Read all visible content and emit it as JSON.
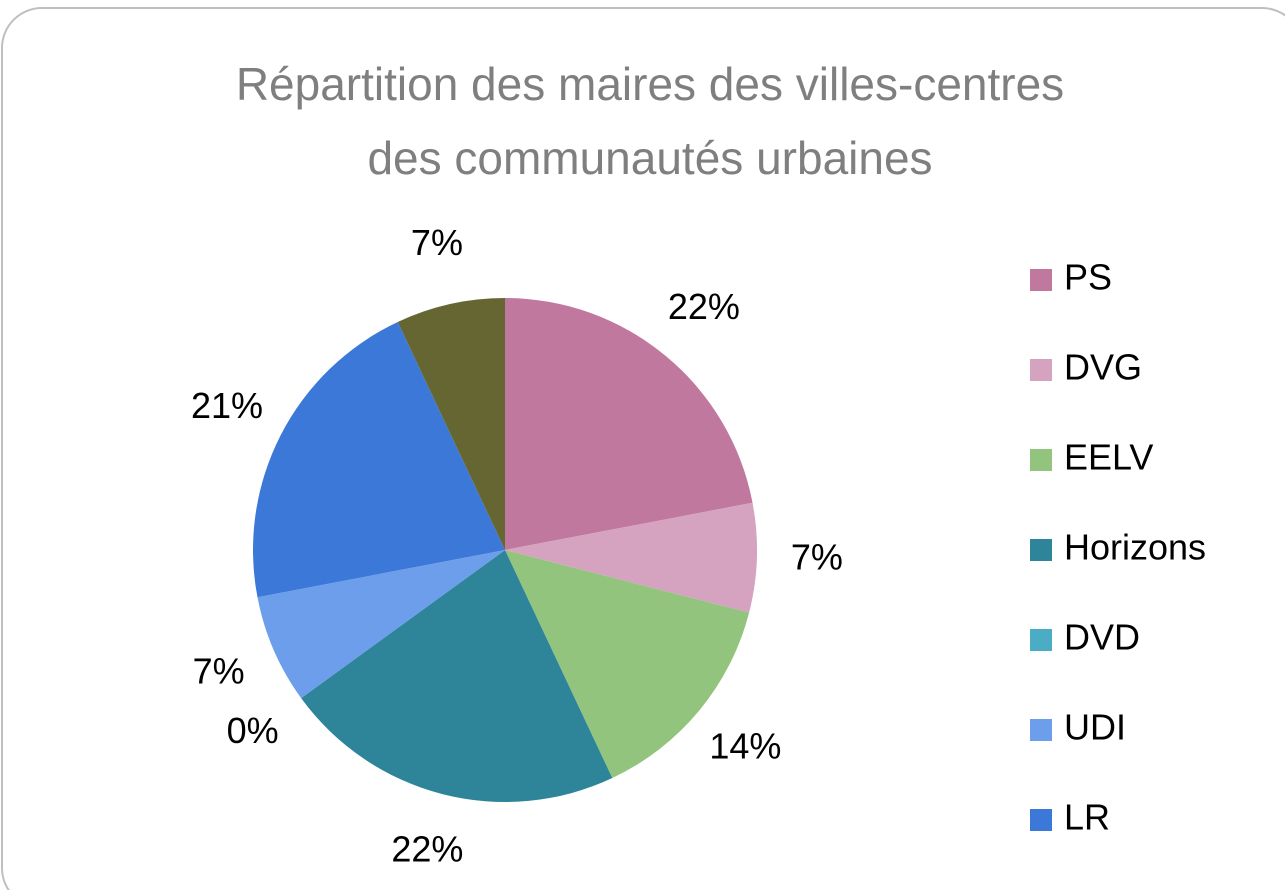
{
  "chart_data": {
    "type": "pie",
    "title": [
      "Répartition des maires des villes-centres",
      "des communautés urbaines"
    ],
    "categories": [
      "PS",
      "DVG",
      "EELV",
      "Horizons",
      "DVD",
      "UDI",
      "LR",
      null
    ],
    "values": [
      22,
      7,
      14,
      22,
      0,
      7,
      21,
      7
    ],
    "value_labels": [
      "22%",
      "7%",
      "14%",
      "22%",
      "0%",
      "7%",
      "21%",
      "7%"
    ],
    "colors": [
      "#c0789f",
      "#d5a3c0",
      "#93c47d",
      "#2e8599",
      "#4bacc6",
      "#6d9eeb",
      "#3c78d8",
      "#666633"
    ],
    "legend": "right"
  }
}
